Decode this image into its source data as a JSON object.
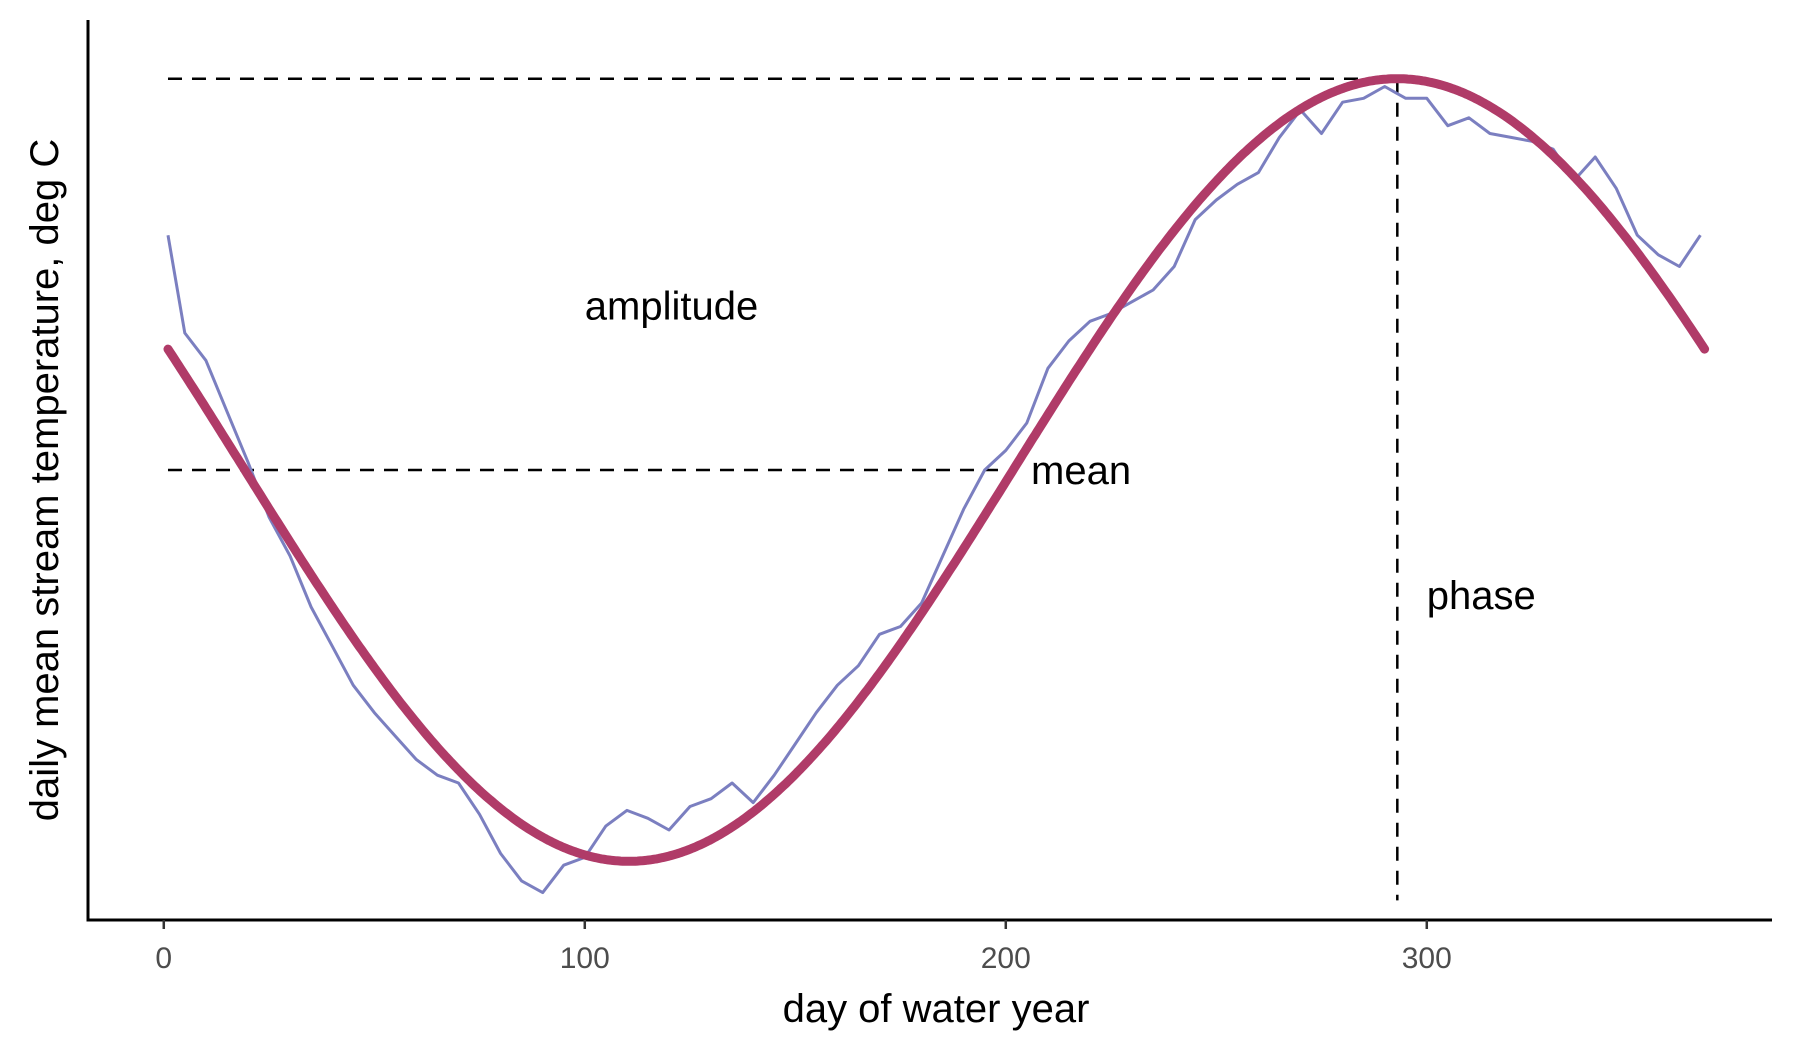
{
  "chart_data": {
    "type": "line",
    "title": "",
    "xlabel": "day of water year",
    "ylabel": "daily mean stream temperature, deg C",
    "xlim": [
      -18,
      382
    ],
    "ylim": [
      -1.15,
      1.15
    ],
    "x_ticks": [
      0,
      100,
      200,
      300
    ],
    "y_ticks": [],
    "grid": false,
    "legend": "none",
    "colors": {
      "observed": "#7b7fc0",
      "fit": "#b03b68",
      "guide": "#000000",
      "axis": "#000000"
    },
    "sine_fit": {
      "name": "fitted sinusoid",
      "mean": 0,
      "amplitude": 1,
      "phase_day": 293,
      "period_days": 365,
      "x_start": 1,
      "x_end": 366
    },
    "observed_series": {
      "name": "daily mean stream temperature",
      "x": [
        1,
        5,
        10,
        15,
        20,
        25,
        30,
        35,
        40,
        45,
        50,
        55,
        60,
        65,
        70,
        75,
        80,
        85,
        90,
        95,
        100,
        105,
        110,
        115,
        120,
        125,
        130,
        135,
        140,
        145,
        150,
        155,
        160,
        165,
        170,
        175,
        180,
        185,
        190,
        195,
        200,
        205,
        210,
        215,
        220,
        225,
        230,
        235,
        240,
        245,
        250,
        255,
        260,
        265,
        270,
        275,
        280,
        285,
        290,
        295,
        300,
        305,
        310,
        315,
        320,
        325,
        330,
        335,
        340,
        345,
        350,
        355,
        360,
        365
      ],
      "y": [
        0.6,
        0.35,
        0.28,
        0.15,
        0.02,
        -0.12,
        -0.22,
        -0.35,
        -0.45,
        -0.55,
        -0.62,
        -0.68,
        -0.74,
        -0.78,
        -0.8,
        -0.88,
        -0.98,
        -1.05,
        -1.08,
        -1.01,
        -0.99,
        -0.91,
        -0.87,
        -0.89,
        -0.92,
        -0.86,
        -0.84,
        -0.8,
        -0.85,
        -0.78,
        -0.7,
        -0.62,
        -0.55,
        -0.5,
        -0.42,
        -0.4,
        -0.34,
        -0.22,
        -0.1,
        0.0,
        0.05,
        0.12,
        0.26,
        0.33,
        0.38,
        0.4,
        0.43,
        0.46,
        0.52,
        0.64,
        0.69,
        0.73,
        0.76,
        0.85,
        0.92,
        0.86,
        0.94,
        0.95,
        0.98,
        0.95,
        0.95,
        0.88,
        0.9,
        0.86,
        0.85,
        0.84,
        0.82,
        0.74,
        0.8,
        0.72,
        0.6,
        0.55,
        0.52,
        0.6
      ]
    },
    "guides": [
      {
        "name": "amplitude-line",
        "from": [
          1,
          1
        ],
        "to": [
          293,
          1
        ]
      },
      {
        "name": "mean-line",
        "from": [
          1,
          0
        ],
        "to": [
          200,
          0
        ]
      },
      {
        "name": "phase-line",
        "from": [
          293,
          1
        ],
        "to": [
          293,
          -1.1
        ]
      }
    ],
    "annotations": [
      {
        "name": "amplitude-label",
        "text": "amplitude",
        "x": 100,
        "y": 0.42
      },
      {
        "name": "mean-label",
        "text": "mean",
        "x": 206,
        "y": 0
      },
      {
        "name": "phase-label",
        "text": "phase",
        "x": 300,
        "y": -0.32
      }
    ]
  }
}
